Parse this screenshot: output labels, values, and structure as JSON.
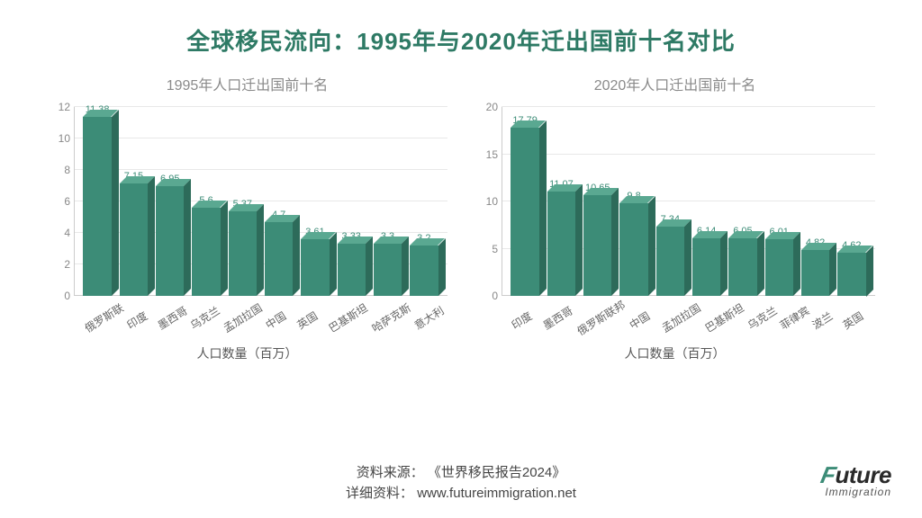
{
  "title": {
    "text": "全球移民流向：1995年与2020年迁出国前十名对比",
    "color": "#2e7a65",
    "fontsize": 26
  },
  "charts": [
    {
      "title": "1995年人口迁出国前十名",
      "title_color": "#8a8a8a",
      "title_fontsize": 16,
      "type": "bar3d",
      "categories": [
        "俄罗斯联",
        "印度",
        "墨西哥",
        "乌克兰",
        "孟加拉国",
        "中国",
        "英国",
        "巴基斯坦",
        "哈萨克斯",
        "意大利"
      ],
      "values": [
        11.38,
        7.15,
        6.95,
        5.6,
        5.37,
        4.7,
        3.61,
        3.33,
        3.3,
        3.2
      ],
      "y_ticks": [
        0,
        2,
        4,
        6,
        8,
        10,
        12
      ],
      "ylim": [
        0,
        12
      ],
      "bar_front": "#3c8c77",
      "bar_top": "#5aa891",
      "bar_side": "#2d6b5a",
      "value_color": "#3c8c77",
      "x_axis_title": "人口数量（百万）",
      "grid_color": "#e8e8e8"
    },
    {
      "title": "2020年人口迁出国前十名",
      "title_color": "#8a8a8a",
      "title_fontsize": 16,
      "type": "bar3d",
      "categories": [
        "印度",
        "墨西哥",
        "俄罗斯联邦",
        "中国",
        "孟加拉国",
        "巴基斯坦",
        "乌克兰",
        "菲律宾",
        "波兰",
        "英国"
      ],
      "values": [
        17.79,
        11.07,
        10.65,
        9.8,
        7.34,
        6.14,
        6.05,
        6.01,
        4.82,
        4.62
      ],
      "y_ticks": [
        0,
        5,
        10,
        15,
        20
      ],
      "ylim": [
        0,
        20
      ],
      "bar_front": "#3c8c77",
      "bar_top": "#5aa891",
      "bar_side": "#2d6b5a",
      "value_color": "#3c8c77",
      "x_axis_title": "人口数量（百万）",
      "grid_color": "#e8e8e8"
    }
  ],
  "footer": {
    "source_label": "资料来源：",
    "source_value": "《世界移民报告2024》",
    "detail_label": "详细资料：",
    "detail_value": "www.futureimmigration.net"
  },
  "logo": {
    "main": "Future",
    "accent_color": "#3c8c77",
    "sub": "Immigration"
  }
}
